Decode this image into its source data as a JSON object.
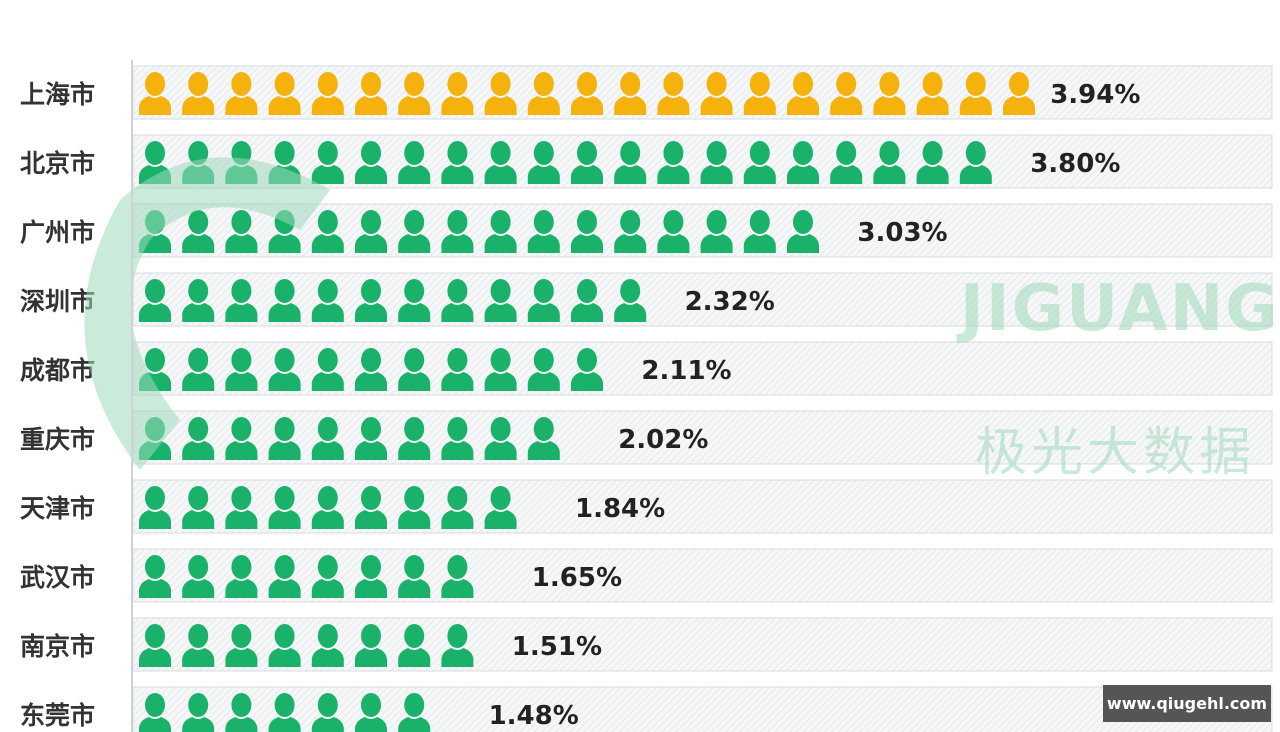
{
  "chart_data": {
    "type": "pictograph-bar",
    "categories": [
      "上海市",
      "北京市",
      "广州市",
      "深圳市",
      "成都市",
      "重庆市",
      "天津市",
      "武汉市",
      "南京市",
      "东莞市"
    ],
    "values": [
      3.94,
      3.8,
      3.03,
      2.32,
      2.11,
      2.02,
      1.84,
      1.65,
      1.51,
      1.48
    ],
    "labels": [
      "3.94%",
      "3.80%",
      "3.03%",
      "2.32%",
      "2.11%",
      "2.02%",
      "1.84%",
      "1.65%",
      "1.51%",
      "1.48%"
    ],
    "unit": "%",
    "icon": "person-icon",
    "colors": {
      "highlight": "#f5b20c",
      "default": "#1ab26b",
      "label": "#222222"
    }
  },
  "watermark": {
    "text": "JIGUANG",
    "subtext": "极光大数据",
    "color": "#bfe6d2"
  },
  "badge": {
    "text": "www.qiugehl.com"
  }
}
